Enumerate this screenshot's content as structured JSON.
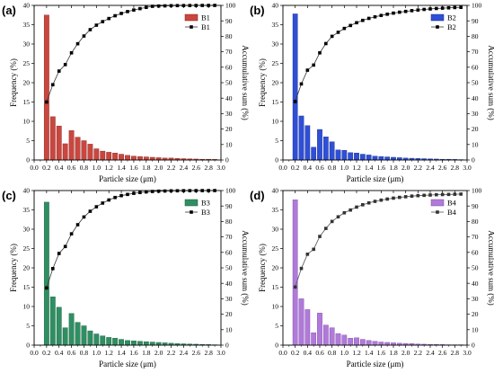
{
  "chart_data": [
    {
      "panel_label": "(a)",
      "type": "bar",
      "bar_color": "#c9473f",
      "bar_stroke": "#8a1f19",
      "cum_color": "#000000",
      "cum_line_color": "#333333",
      "xlabel": "Particle size (μm)",
      "ylabel": "Frequency (%)",
      "y2label": "Accumulative sum (%)",
      "xlim": [
        0.0,
        3.0
      ],
      "ylim": [
        0,
        40
      ],
      "y2lim": [
        0,
        100
      ],
      "xticks": [
        "0.0",
        "0.2",
        "0.4",
        "0.6",
        "0.8",
        "1.0",
        "1.2",
        "1.4",
        "1.6",
        "1.8",
        "2.0",
        "2.2",
        "2.4",
        "2.6",
        "2.8",
        "3.0"
      ],
      "yticks": [
        "0",
        "5",
        "10",
        "15",
        "20",
        "25",
        "30",
        "35",
        "40"
      ],
      "y2ticks": [
        "0",
        "10",
        "20",
        "30",
        "40",
        "50",
        "60",
        "70",
        "80",
        "90",
        "100"
      ],
      "legend": {
        "position": "top-right",
        "bar_label": "B1",
        "line_label": "B1"
      },
      "series": [
        {
          "name": "B1",
          "kind": "bar",
          "x": [
            0.2,
            0.3,
            0.4,
            0.5,
            0.6,
            0.7,
            0.8,
            0.9,
            1.0,
            1.1,
            1.2,
            1.3,
            1.4,
            1.5,
            1.6,
            1.7,
            1.8,
            1.9,
            2.0,
            2.1,
            2.2,
            2.3,
            2.4,
            2.5,
            2.6,
            2.7,
            2.8,
            2.9
          ],
          "values": [
            37.5,
            11.2,
            8.8,
            4.2,
            7.6,
            5.9,
            5.0,
            4.1,
            2.9,
            2.3,
            2.0,
            1.8,
            1.5,
            1.2,
            1.0,
            0.9,
            0.8,
            0.7,
            0.6,
            0.5,
            0.5,
            0.4,
            0.35,
            0.3,
            0.25,
            0.2,
            0.2,
            0.15
          ]
        },
        {
          "name": "B1",
          "kind": "line",
          "x": [
            0.2,
            0.3,
            0.4,
            0.5,
            0.6,
            0.7,
            0.8,
            0.9,
            1.0,
            1.1,
            1.2,
            1.3,
            1.4,
            1.5,
            1.6,
            1.7,
            1.8,
            1.9,
            2.0,
            2.1,
            2.2,
            2.3,
            2.4,
            2.5,
            2.6,
            2.7,
            2.8,
            2.9
          ],
          "values": [
            37.5,
            48.7,
            57.5,
            61.7,
            69.3,
            75.2,
            80.2,
            84.3,
            87.2,
            89.5,
            91.5,
            93.3,
            94.8,
            96.0,
            97.0,
            97.9,
            98.7,
            99.4,
            99.6,
            99.7,
            99.8,
            99.85,
            99.9,
            99.92,
            99.95,
            99.97,
            99.98,
            100
          ]
        }
      ]
    },
    {
      "panel_label": "(b)",
      "type": "bar",
      "bar_color": "#2f4fd6",
      "bar_stroke": "#1a2f8f",
      "cum_color": "#000000",
      "cum_line_color": "#333333",
      "xlabel": "Particle size (μm)",
      "ylabel": "Frequency (%)",
      "y2label": "Accumulative sum (%)",
      "xlim": [
        0.0,
        3.0
      ],
      "ylim": [
        0,
        40
      ],
      "y2lim": [
        0,
        100
      ],
      "xticks": [
        "0.0",
        "0.2",
        "0.4",
        "0.6",
        "0.8",
        "1.0",
        "1.2",
        "1.4",
        "1.6",
        "1.8",
        "2.0",
        "2.2",
        "2.4",
        "2.6",
        "2.8",
        "3.0"
      ],
      "yticks": [
        "0",
        "5",
        "10",
        "15",
        "20",
        "25",
        "30",
        "35",
        "40"
      ],
      "y2ticks": [
        "0",
        "10",
        "20",
        "30",
        "40",
        "50",
        "60",
        "70",
        "80",
        "90",
        "100"
      ],
      "legend": {
        "position": "top-right",
        "bar_label": "B2",
        "line_label": "B2"
      },
      "series": [
        {
          "name": "B2",
          "kind": "bar",
          "x": [
            0.2,
            0.3,
            0.4,
            0.5,
            0.6,
            0.7,
            0.8,
            0.9,
            1.0,
            1.1,
            1.2,
            1.3,
            1.4,
            1.5,
            1.6,
            1.7,
            1.8,
            1.9,
            2.0,
            2.1,
            2.2,
            2.3,
            2.4,
            2.5,
            2.6,
            2.7,
            2.8,
            2.9
          ],
          "values": [
            37.8,
            11.4,
            8.9,
            3.3,
            7.9,
            6.0,
            4.7,
            2.6,
            2.5,
            1.9,
            1.8,
            1.5,
            1.3,
            1.0,
            0.9,
            0.8,
            0.7,
            0.6,
            0.5,
            0.45,
            0.4,
            0.35,
            0.3,
            0.25,
            0.2,
            0.2,
            0.15,
            0.1
          ]
        },
        {
          "name": "B2",
          "kind": "line",
          "x": [
            0.2,
            0.3,
            0.4,
            0.5,
            0.6,
            0.7,
            0.8,
            0.9,
            1.0,
            1.1,
            1.2,
            1.3,
            1.4,
            1.5,
            1.6,
            1.7,
            1.8,
            1.9,
            2.0,
            2.1,
            2.2,
            2.3,
            2.4,
            2.5,
            2.6,
            2.7,
            2.8,
            2.9
          ],
          "values": [
            37.8,
            49.2,
            58.1,
            61.4,
            69.3,
            75.3,
            80.0,
            82.6,
            85.1,
            87.0,
            88.8,
            90.3,
            91.6,
            92.6,
            93.5,
            94.3,
            95.0,
            95.6,
            96.1,
            96.6,
            97.0,
            97.4,
            97.7,
            98.0,
            98.2,
            98.4,
            98.6,
            98.7
          ]
        }
      ]
    },
    {
      "panel_label": "(c)",
      "type": "bar",
      "bar_color": "#2f8f62",
      "bar_stroke": "#1a5c3d",
      "cum_color": "#000000",
      "cum_line_color": "#333333",
      "xlabel": "Particle size (μm)",
      "ylabel": "Frequency (%)",
      "y2label": "Accumulative sum (%)",
      "xlim": [
        0.0,
        3.0
      ],
      "ylim": [
        0,
        40
      ],
      "y2lim": [
        0,
        100
      ],
      "xticks": [
        "0.0",
        "0.2",
        "0.4",
        "0.6",
        "0.8",
        "1.0",
        "1.2",
        "1.4",
        "1.6",
        "1.8",
        "2.0",
        "2.2",
        "2.4",
        "2.6",
        "2.8",
        "3.0"
      ],
      "yticks": [
        "0",
        "5",
        "10",
        "15",
        "20",
        "25",
        "30",
        "35",
        "40"
      ],
      "y2ticks": [
        "0",
        "10",
        "20",
        "30",
        "40",
        "50",
        "60",
        "70",
        "80",
        "90",
        "100"
      ],
      "legend": {
        "position": "top-right",
        "bar_label": "B3",
        "line_label": "B3"
      },
      "series": [
        {
          "name": "B3",
          "kind": "bar",
          "x": [
            0.2,
            0.3,
            0.4,
            0.5,
            0.6,
            0.7,
            0.8,
            0.9,
            1.0,
            1.1,
            1.2,
            1.3,
            1.4,
            1.5,
            1.6,
            1.7,
            1.8,
            1.9,
            2.0,
            2.1,
            2.2,
            2.3,
            2.4,
            2.5,
            2.6,
            2.7,
            2.8,
            2.9
          ],
          "values": [
            37.0,
            12.5,
            9.8,
            4.5,
            8.2,
            5.9,
            5.0,
            3.7,
            2.9,
            2.4,
            2.0,
            1.8,
            1.5,
            1.2,
            1.1,
            1.0,
            0.9,
            0.8,
            0.7,
            0.6,
            0.5,
            0.4,
            0.35,
            0.3,
            0.25,
            0.2,
            0.15,
            0.1
          ]
        },
        {
          "name": "B3",
          "kind": "line",
          "x": [
            0.2,
            0.3,
            0.4,
            0.5,
            0.6,
            0.7,
            0.8,
            0.9,
            1.0,
            1.1,
            1.2,
            1.3,
            1.4,
            1.5,
            1.6,
            1.7,
            1.8,
            1.9,
            2.0,
            2.1,
            2.2,
            2.3,
            2.4,
            2.5,
            2.6,
            2.7,
            2.8,
            2.9
          ],
          "values": [
            37.0,
            49.5,
            59.3,
            63.8,
            72.0,
            77.9,
            82.9,
            86.6,
            89.5,
            91.9,
            93.9,
            95.5,
            96.7,
            97.5,
            98.2,
            98.7,
            99.1,
            99.4,
            99.6,
            99.7,
            99.8,
            99.85,
            99.9,
            99.92,
            99.95,
            99.97,
            99.98,
            100
          ]
        }
      ]
    },
    {
      "panel_label": "(d)",
      "type": "bar",
      "bar_color": "#b07ad9",
      "bar_stroke": "#7d48a8",
      "cum_color": "#333333",
      "cum_line_color": "#555555",
      "xlabel": "Particle size (μm)",
      "ylabel": "Frequency (%)",
      "y2label": "Accumulative sum (%)",
      "xlim": [
        0.0,
        3.0
      ],
      "ylim": [
        0,
        40
      ],
      "y2lim": [
        0,
        100
      ],
      "xticks": [
        "0.0",
        "0.2",
        "0.4",
        "0.6",
        "0.8",
        "1.0",
        "1.2",
        "1.4",
        "1.6",
        "1.8",
        "2.0",
        "2.2",
        "2.4",
        "2.6",
        "2.8",
        "3.0"
      ],
      "yticks": [
        "0",
        "5",
        "10",
        "15",
        "20",
        "25",
        "30",
        "35",
        "40"
      ],
      "y2ticks": [
        "0",
        "10",
        "20",
        "30",
        "40",
        "50",
        "60",
        "70",
        "80",
        "90",
        "100"
      ],
      "legend": {
        "position": "top-right",
        "bar_label": "B4",
        "line_label": "B4"
      },
      "series": [
        {
          "name": "B4",
          "kind": "bar",
          "x": [
            0.2,
            0.3,
            0.4,
            0.5,
            0.6,
            0.7,
            0.8,
            0.9,
            1.0,
            1.1,
            1.2,
            1.3,
            1.4,
            1.5,
            1.6,
            1.7,
            1.8,
            1.9,
            2.0,
            2.1,
            2.2,
            2.3,
            2.4,
            2.5,
            2.6,
            2.7,
            2.8,
            2.9
          ],
          "values": [
            37.6,
            12.0,
            9.2,
            3.2,
            8.3,
            5.2,
            4.5,
            3.0,
            2.6,
            1.8,
            1.9,
            1.5,
            1.2,
            1.0,
            0.8,
            0.7,
            0.6,
            0.5,
            0.45,
            0.4,
            0.3,
            0.25,
            0.2,
            0.2,
            0.15,
            0.1,
            0.1,
            0.1
          ]
        },
        {
          "name": "B4",
          "kind": "line",
          "x": [
            0.2,
            0.3,
            0.4,
            0.5,
            0.6,
            0.7,
            0.8,
            0.9,
            1.0,
            1.1,
            1.2,
            1.3,
            1.4,
            1.5,
            1.6,
            1.7,
            1.8,
            1.9,
            2.0,
            2.1,
            2.2,
            2.3,
            2.4,
            2.5,
            2.6,
            2.7,
            2.8,
            2.9
          ],
          "values": [
            37.6,
            49.6,
            58.8,
            62.0,
            70.3,
            75.5,
            80.0,
            83.0,
            85.6,
            87.4,
            89.3,
            90.8,
            92.0,
            93.0,
            93.8,
            94.5,
            95.1,
            95.6,
            96.0,
            96.4,
            96.7,
            96.9,
            97.1,
            97.3,
            97.4,
            97.5,
            97.6,
            97.7
          ]
        }
      ]
    }
  ]
}
